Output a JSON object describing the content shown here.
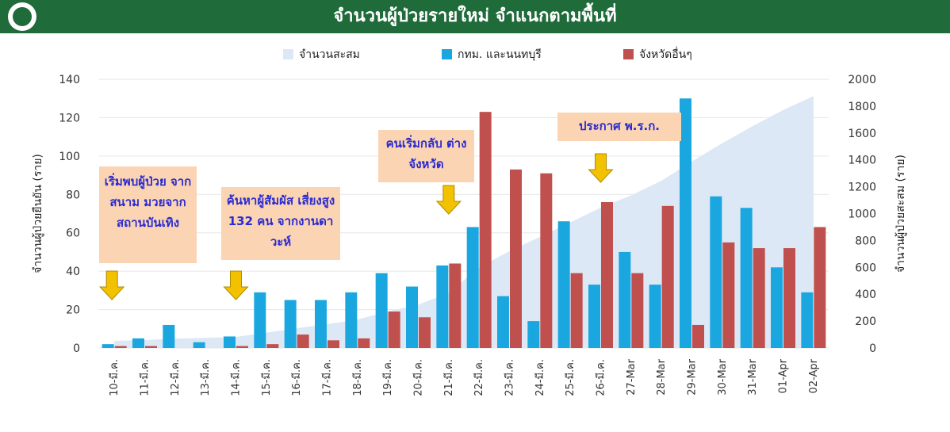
{
  "header": {
    "title": "จำนวนผู้ป่วยรายใหม่ จำแนกตามพื้นที่"
  },
  "colors": {
    "header_bg": "#1f6b3a",
    "bkk": "#1aa7e0",
    "province": "#c0504d",
    "cumulative": "#dce8f5",
    "callout_bg": "#fbd4b4",
    "callout_text": "#2a2ad0",
    "arrow": "#f2c200"
  },
  "callouts": [
    {
      "text": "เริ่มพบผู้ป่วย จากสนาม มวยจาก สถานบันเทิง"
    },
    {
      "text": "ค้นหาผู้สัมผัส เสี่ยงสูง 132 คน จากงานดาวะห์"
    },
    {
      "text": "คนเริ่มกลับ ต่างจังหวัด"
    },
    {
      "text": "ประกาศ พ.ร.ก."
    }
  ],
  "chart_data": {
    "type": "bar",
    "categories": [
      "10-มี.ค.",
      "11-มี.ค.",
      "12-มี.ค.",
      "13-มี.ค.",
      "14-มี.ค.",
      "15-มี.ค.",
      "16-มี.ค.",
      "17-มี.ค.",
      "18-มี.ค.",
      "19-มี.ค.",
      "20-มี.ค.",
      "21-มี.ค.",
      "22-มี.ค.",
      "23-มี.ค.",
      "24-มี.ค.",
      "25-มี.ค.",
      "26-มี.ค.",
      "27-Mar",
      "28-Mar",
      "29-Mar",
      "30-Mar",
      "31-Mar",
      "01-Apr",
      "02-Apr"
    ],
    "series": [
      {
        "name": "กทม. และนนทบุรี",
        "axis": "left",
        "values": [
          2,
          5,
          12,
          3,
          6,
          29,
          25,
          25,
          29,
          39,
          32,
          43,
          63,
          27,
          14,
          66,
          33,
          50,
          33,
          130,
          79,
          73,
          42,
          29
        ]
      },
      {
        "name": "จังหวัดอื่นๆ",
        "axis": "left",
        "values": [
          1,
          1,
          0,
          0,
          1,
          2,
          7,
          4,
          5,
          19,
          16,
          44,
          123,
          93,
          91,
          39,
          76,
          39,
          74,
          12,
          55,
          52,
          52,
          63
        ]
      },
      {
        "name": "จำนวนสะสม",
        "type": "area",
        "axis": "right",
        "values": [
          53,
          59,
          70,
          75,
          82,
          114,
          147,
          177,
          212,
          272,
          322,
          411,
          599,
          721,
          827,
          934,
          1045,
          1136,
          1245,
          1388,
          1524,
          1651,
          1771,
          1875
        ]
      }
    ],
    "ylabel_left": "จำนวนผู้ป่วยยืนยัน (ราย)",
    "ylabel_right": "จำนวนผู้ป่วยสะสม (ราย)",
    "ylim_left": [
      0,
      140
    ],
    "ylim_right": [
      0,
      2000
    ],
    "yticks_left": [
      "0",
      "20",
      "40",
      "60",
      "80",
      "100",
      "120",
      "140"
    ],
    "yticks_right": [
      "0",
      "200",
      "400",
      "600",
      "800",
      "1000",
      "1200",
      "1400",
      "1600",
      "1800",
      "2000"
    ],
    "legend_position": "top",
    "grid": true,
    "arrow_categories": [
      "10-มี.ค.",
      "14-มี.ค.",
      "21-มี.ค.",
      "26-มี.ค."
    ]
  }
}
